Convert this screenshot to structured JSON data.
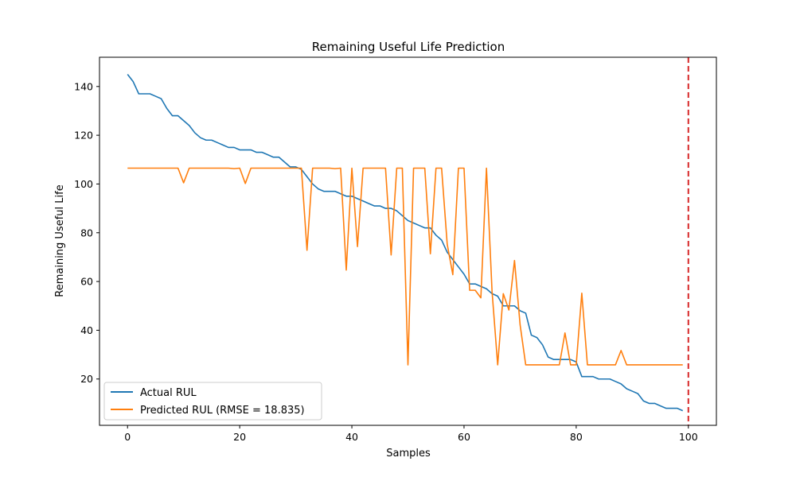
{
  "chart_data": {
    "type": "line",
    "title": "Remaining Useful Life Prediction",
    "xlabel": "Samples",
    "ylabel": "Remaining Useful Life",
    "xlim": [
      -5,
      105
    ],
    "ylim": [
      1,
      152
    ],
    "xticks": [
      0,
      20,
      40,
      60,
      80,
      100
    ],
    "yticks": [
      20,
      40,
      60,
      80,
      100,
      120,
      140
    ],
    "grid": false,
    "legend_position": "lower-left",
    "vline": {
      "x": 100,
      "color": "#d62728",
      "style": "dashed"
    },
    "series": [
      {
        "name": "Actual RUL",
        "color": "#1f77b4",
        "x": [
          0,
          1,
          2,
          3,
          4,
          5,
          6,
          7,
          8,
          9,
          10,
          11,
          12,
          13,
          14,
          15,
          16,
          17,
          18,
          19,
          20,
          21,
          22,
          23,
          24,
          25,
          26,
          27,
          28,
          29,
          30,
          31,
          32,
          33,
          34,
          35,
          36,
          37,
          38,
          39,
          40,
          41,
          42,
          43,
          44,
          45,
          46,
          47,
          48,
          49,
          50,
          51,
          52,
          53,
          54,
          55,
          56,
          57,
          58,
          59,
          60,
          61,
          62,
          63,
          64,
          65,
          66,
          67,
          68,
          69,
          70,
          71,
          72,
          73,
          74,
          75,
          76,
          77,
          78,
          79,
          80,
          81,
          82,
          83,
          84,
          85,
          86,
          87,
          88,
          89,
          90,
          91,
          92,
          93,
          94,
          95,
          96,
          97,
          98,
          99
        ],
        "y": [
          145,
          142,
          137,
          137,
          137,
          136,
          135,
          131,
          128,
          128,
          126,
          124,
          121,
          119,
          118,
          118,
          117,
          116,
          115,
          115,
          114,
          114,
          114,
          113,
          113,
          112,
          111,
          111,
          109,
          107,
          107,
          106,
          103,
          100,
          98,
          97,
          97,
          97,
          96,
          95,
          95,
          94,
          93,
          92,
          91,
          91,
          90,
          90,
          89,
          87,
          85,
          84,
          83,
          82,
          82,
          79,
          77,
          72,
          69,
          66,
          63,
          59,
          59,
          58,
          57,
          55,
          54,
          50,
          50,
          50,
          48,
          47,
          38,
          37,
          34,
          29,
          28,
          28,
          28,
          28,
          27,
          21,
          21,
          21,
          20,
          20,
          20,
          19,
          18,
          16,
          15,
          14,
          11,
          10,
          10,
          9,
          8,
          8,
          8,
          7
        ]
      },
      {
        "name": "Predicted RUL (RMSE = 18.835)",
        "color": "#ff7f0e",
        "x": [
          0,
          1,
          2,
          3,
          4,
          5,
          6,
          7,
          8,
          9,
          10,
          11,
          12,
          13,
          14,
          15,
          16,
          17,
          18,
          19,
          20,
          21,
          22,
          23,
          24,
          25,
          26,
          27,
          28,
          29,
          30,
          31,
          32,
          33,
          34,
          35,
          36,
          37,
          38,
          39,
          40,
          41,
          42,
          43,
          44,
          45,
          46,
          47,
          48,
          49,
          50,
          51,
          52,
          53,
          54,
          55,
          56,
          57,
          58,
          59,
          60,
          61,
          62,
          63,
          64,
          65,
          66,
          67,
          68,
          69,
          70,
          71,
          72,
          73,
          74,
          75,
          76,
          77,
          78,
          79,
          80,
          81,
          82,
          83,
          84,
          85,
          86,
          87,
          88,
          89,
          90,
          91,
          92,
          93,
          94,
          95,
          96,
          97,
          98,
          99
        ],
        "y": [
          106.5,
          106.5,
          106.5,
          106.5,
          106.5,
          106.5,
          106.5,
          106.5,
          106.5,
          106.5,
          100.5,
          106.5,
          106.5,
          106.5,
          106.5,
          106.5,
          106.5,
          106.5,
          106.5,
          106.3,
          106.5,
          100.2,
          106.5,
          106.5,
          106.5,
          106.5,
          106.5,
          106.5,
          106.5,
          106.5,
          106.5,
          106.5,
          72.8,
          106.5,
          106.5,
          106.5,
          106.5,
          106.3,
          106.5,
          64.7,
          106.5,
          74.3,
          106.5,
          106.5,
          106.5,
          106.5,
          106.5,
          70.9,
          106.5,
          106.5,
          25.8,
          106.5,
          106.5,
          106.5,
          71.4,
          106.5,
          106.5,
          75.3,
          62.8,
          106.5,
          106.5,
          56.4,
          56.4,
          53.3,
          106.5,
          55.8,
          25.8,
          55.0,
          48.3,
          68.6,
          42.2,
          25.8,
          25.8,
          25.8,
          25.8,
          25.8,
          25.8,
          25.8,
          38.9,
          25.8,
          25.8,
          55.2,
          25.8,
          25.8,
          25.8,
          25.8,
          25.8,
          25.8,
          31.7,
          25.8,
          25.8,
          25.8,
          25.8,
          25.8,
          25.8,
          25.8,
          25.8,
          25.8,
          25.8,
          25.8
        ]
      }
    ]
  }
}
